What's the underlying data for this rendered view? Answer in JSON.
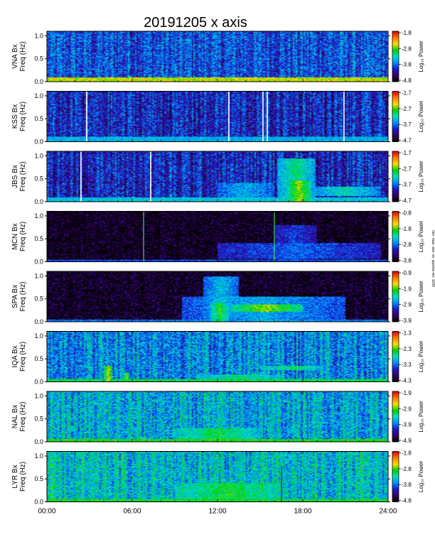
{
  "chart_data": {
    "type": "heatmap",
    "title": "20191205  x  axis",
    "xlabel": "",
    "x_range_hours": [
      0,
      24
    ],
    "x_ticks": [
      "00:00",
      "06:00",
      "12:00",
      "18:00",
      "24:00"
    ],
    "y_range_hz": [
      0,
      1.1
    ],
    "y_ticks": [
      "0.0",
      "0.5",
      "1.0"
    ],
    "colorbar_label": "Log₁₀ Power",
    "colormap": [
      "#000000",
      "#3a0066",
      "#1a1ad0",
      "#0090ff",
      "#00e0c0",
      "#00d000",
      "#ffe000",
      "#ff7a00",
      "#e00000"
    ],
    "side_note": "min. max. ave. vs. spectra ver. 1200",
    "panels": [
      {
        "station": "VNA",
        "ylabel_top": "VNA Bx",
        "ylabel_bottom": "Freq (Hz)",
        "colorbar_ticks": [
          "-1.8",
          "-2.8",
          "-3.8",
          "-4.8"
        ],
        "base_level": 0.3,
        "low_band": [
          {
            "t0": 0,
            "t1": 24,
            "f1": 0.08,
            "level": 0.72
          }
        ],
        "activity": [],
        "white_lines": [],
        "bright_lines": []
      },
      {
        "station": "KSS",
        "ylabel_top": "KSS Bx",
        "ylabel_bottom": "Freq (Hz)",
        "colorbar_ticks": [
          "-1.7",
          "-2.7",
          "-3.7",
          "-4.7"
        ],
        "base_level": 0.24,
        "low_band": [
          {
            "t0": 0,
            "t1": 24,
            "f1": 0.1,
            "level": 0.42
          }
        ],
        "activity": [],
        "white_lines": [
          2.8,
          12.8,
          15.2,
          15.5,
          20.9
        ],
        "bright_lines": []
      },
      {
        "station": "JBS",
        "ylabel_top": "JBS Bx",
        "ylabel_bottom": "Freq (Hz)",
        "colorbar_ticks": [
          "-1.7",
          "-2.7",
          "-3.7",
          "-4.7"
        ],
        "base_level": 0.24,
        "low_band": [
          {
            "t0": 0,
            "t1": 24,
            "f1": 0.08,
            "level": 0.45
          }
        ],
        "activity": [
          {
            "t0": 16.2,
            "t1": 18.9,
            "f0": 0.0,
            "f1": 0.95,
            "level": 0.55
          },
          {
            "t0": 17.0,
            "t1": 18.6,
            "f0": 0.0,
            "f1": 0.45,
            "level": 0.7
          },
          {
            "t0": 18.5,
            "t1": 23.5,
            "f0": 0.12,
            "f1": 0.32,
            "level": 0.5
          },
          {
            "t0": 12.0,
            "t1": 16.0,
            "f0": 0.0,
            "f1": 0.4,
            "level": 0.42
          }
        ],
        "white_lines": [
          2.4,
          7.3
        ],
        "bright_lines": []
      },
      {
        "station": "MCN",
        "ylabel_top": "MCN Bx",
        "ylabel_bottom": "Freq (Hz)",
        "colorbar_ticks": [
          "-0.8",
          "-1.8",
          "-2.8",
          "-3.8"
        ],
        "base_level": 0.02,
        "low_band": [
          {
            "t0": 0,
            "t1": 24,
            "f1": 0.04,
            "level": 0.3
          }
        ],
        "activity": [
          {
            "t0": 12.0,
            "t1": 23.5,
            "f0": 0.05,
            "f1": 0.4,
            "level": 0.32
          },
          {
            "t0": 16.0,
            "t1": 19.0,
            "f0": 0.0,
            "f1": 0.8,
            "level": 0.28
          }
        ],
        "white_lines": [],
        "bright_lines": [
          6.8,
          16.0
        ]
      },
      {
        "station": "SPA",
        "ylabel_top": "SPA Bx",
        "ylabel_bottom": "Freq (Hz)",
        "colorbar_ticks": [
          "-0.9",
          "-1.9",
          "-2.9",
          "-3.9"
        ],
        "base_level": 0.03,
        "low_band": [
          {
            "t0": 0,
            "t1": 24,
            "f1": 0.04,
            "level": 0.35
          }
        ],
        "activity": [
          {
            "t0": 9.5,
            "t1": 21.0,
            "f0": 0.0,
            "f1": 0.55,
            "level": 0.42
          },
          {
            "t0": 11.0,
            "t1": 13.5,
            "f0": 0.1,
            "f1": 1.0,
            "level": 0.45
          },
          {
            "t0": 13.0,
            "t1": 18.0,
            "f0": 0.22,
            "f1": 0.38,
            "level": 0.7
          },
          {
            "t0": 11.5,
            "t1": 12.8,
            "f0": 0.0,
            "f1": 0.4,
            "level": 0.62
          }
        ],
        "white_lines": [],
        "bright_lines": []
      },
      {
        "station": "IQA",
        "ylabel_top": "IQA Bx",
        "ylabel_bottom": "Freq (Hz)",
        "colorbar_ticks": [
          "-1.3",
          "-2.3",
          "-3.3",
          "-4.3"
        ],
        "base_level": 0.38,
        "low_band": [
          {
            "t0": 0,
            "t1": 24,
            "f1": 0.06,
            "level": 0.58
          }
        ],
        "activity": [
          {
            "t0": 4.0,
            "t1": 4.6,
            "f0": 0.0,
            "f1": 0.35,
            "level": 0.75
          },
          {
            "t0": 5.4,
            "t1": 5.8,
            "f0": 0.0,
            "f1": 0.2,
            "level": 0.65
          },
          {
            "t0": 15.0,
            "t1": 19.5,
            "f0": 0.25,
            "f1": 0.35,
            "level": 0.55
          },
          {
            "t0": 10.5,
            "t1": 16.5,
            "f0": 0.0,
            "f1": 0.15,
            "level": 0.55
          }
        ],
        "white_lines": [],
        "bright_lines": [
          17.6
        ]
      },
      {
        "station": "NAL",
        "ylabel_top": "NAL Bx",
        "ylabel_bottom": "Freq (Hz)",
        "colorbar_ticks": [
          "-1.9",
          "-2.9",
          "-3.9",
          "-4.9"
        ],
        "base_level": 0.42,
        "low_band": [
          {
            "t0": 0,
            "t1": 24,
            "f1": 0.06,
            "level": 0.62
          }
        ],
        "activity": [
          {
            "t0": 9.0,
            "t1": 15.0,
            "f0": 0.0,
            "f1": 0.3,
            "level": 0.58
          }
        ],
        "white_lines": [],
        "bright_lines": []
      },
      {
        "station": "LYR",
        "ylabel_top": "LYR Bx",
        "ylabel_bottom": "Freq (Hz)",
        "colorbar_ticks": [
          "-1.8",
          "-2.8",
          "-3.8",
          "-4.8"
        ],
        "base_level": 0.45,
        "low_band": [
          {
            "t0": 0,
            "t1": 24,
            "f1": 0.06,
            "level": 0.6
          }
        ],
        "activity": [
          {
            "t0": 9.0,
            "t1": 16.5,
            "f0": 0.0,
            "f1": 0.4,
            "level": 0.6
          }
        ],
        "white_lines": [],
        "bright_lines": [],
        "dark_lines": [
          16.5
        ]
      }
    ]
  }
}
